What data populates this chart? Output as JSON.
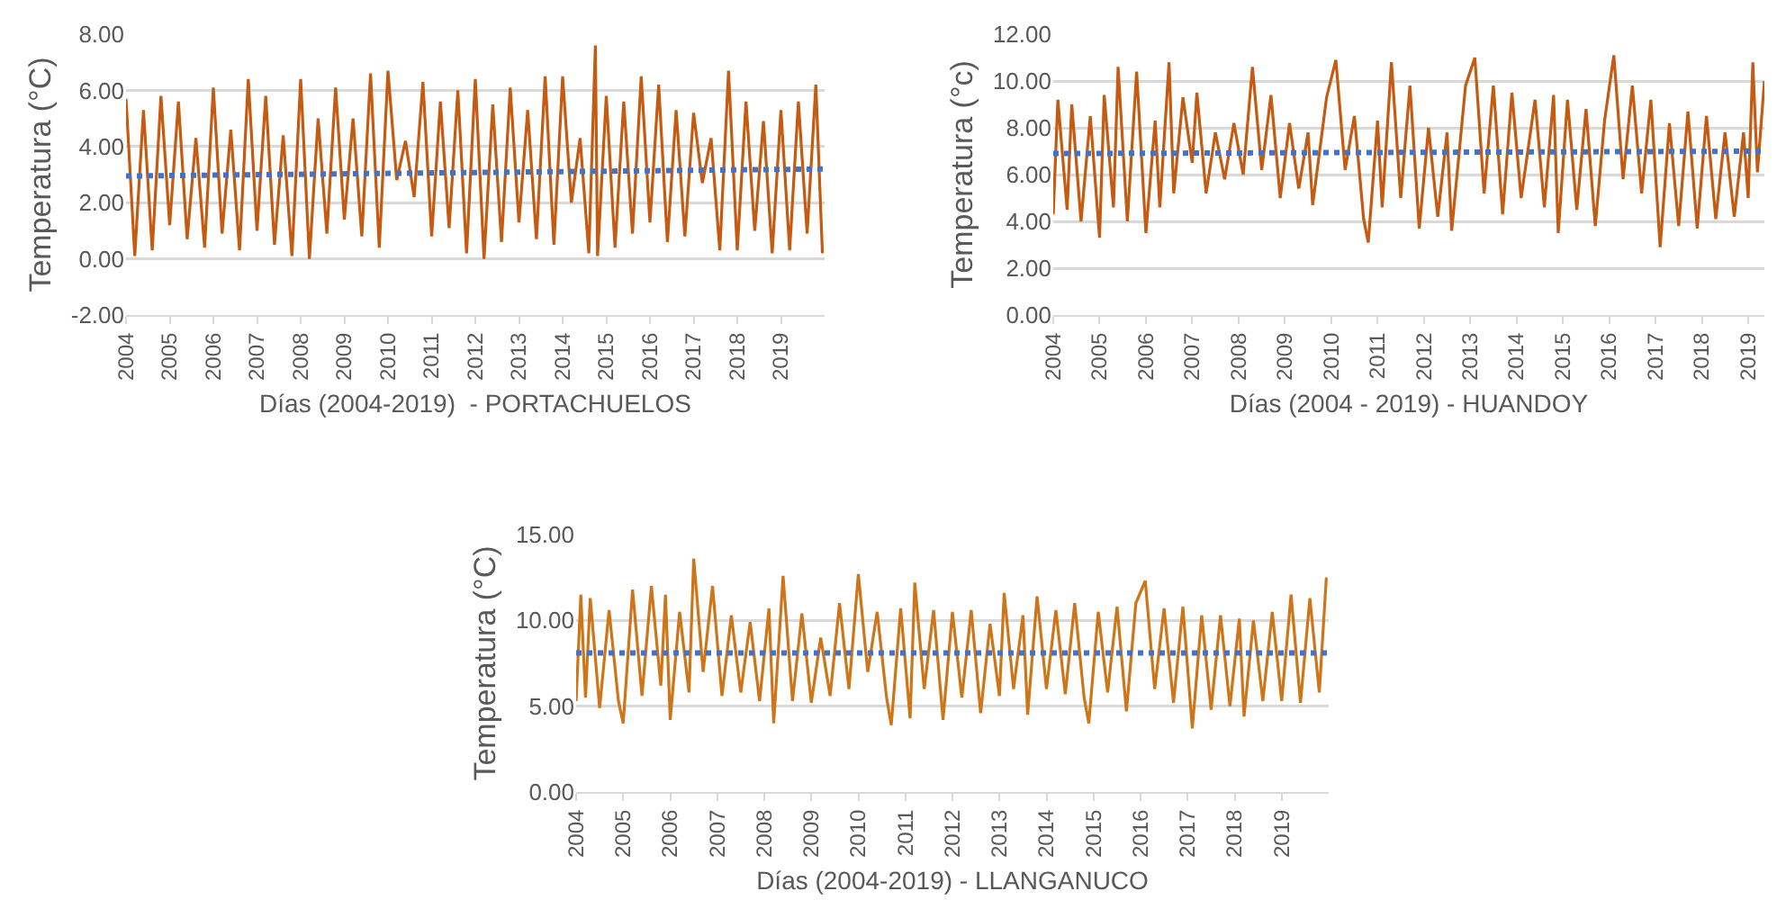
{
  "chart_data": [
    {
      "type": "line",
      "xlabel": "Días (2004-2019)  - PORTACHUELOS",
      "ylabel": "Temperatura (°C)",
      "xlim": [
        2004,
        2020
      ],
      "xticks": [
        2004,
        2005,
        2006,
        2007,
        2008,
        2009,
        2010,
        2011,
        2012,
        2013,
        2014,
        2015,
        2016,
        2017,
        2018,
        2019
      ],
      "ylim": [
        -2,
        8
      ],
      "yticks": [
        {
          "value": -2,
          "label": "-2.00"
        },
        {
          "value": 0,
          "label": "0.00"
        },
        {
          "value": 2,
          "label": "2.00"
        },
        {
          "value": 4,
          "label": "4.00"
        },
        {
          "value": 6,
          "label": "6.00"
        },
        {
          "value": 8,
          "label": "8.00"
        }
      ],
      "grid": "y",
      "marker": "none",
      "series": [
        {
          "color": "#c55a11",
          "line_style": "solid",
          "x": [
            2004.0,
            2004.2,
            2004.4,
            2004.6,
            2004.8,
            2005.0,
            2005.2,
            2005.4,
            2005.6,
            2005.8,
            2006.0,
            2006.2,
            2006.4,
            2006.6,
            2006.8,
            2007.0,
            2007.2,
            2007.4,
            2007.6,
            2007.8,
            2008.0,
            2008.2,
            2008.4,
            2008.6,
            2008.8,
            2009.0,
            2009.2,
            2009.4,
            2009.6,
            2009.8,
            2010.0,
            2010.2,
            2010.4,
            2010.6,
            2010.8,
            2011.0,
            2011.2,
            2011.4,
            2011.6,
            2011.8,
            2012.0,
            2012.2,
            2012.4,
            2012.6,
            2012.8,
            2013.0,
            2013.2,
            2013.4,
            2013.6,
            2013.8,
            2014.0,
            2014.2,
            2014.4,
            2014.6,
            2014.75,
            2014.8,
            2015.0,
            2015.2,
            2015.4,
            2015.6,
            2015.8,
            2016.0,
            2016.2,
            2016.4,
            2016.6,
            2016.8,
            2017.0,
            2017.2,
            2017.4,
            2017.6,
            2017.8,
            2018.0,
            2018.2,
            2018.4,
            2018.6,
            2018.8,
            2019.0,
            2019.2,
            2019.4,
            2019.6,
            2019.8,
            2019.95
          ],
          "values": [
            5.7,
            0.1,
            5.3,
            0.3,
            5.8,
            1.2,
            5.6,
            0.7,
            4.3,
            0.4,
            6.1,
            0.9,
            4.6,
            0.3,
            6.4,
            1.0,
            5.8,
            0.5,
            4.4,
            0.1,
            6.4,
            0.0,
            5.0,
            0.9,
            6.1,
            1.4,
            5.0,
            0.8,
            6.6,
            0.4,
            6.7,
            2.8,
            4.2,
            2.2,
            6.3,
            0.8,
            5.6,
            1.1,
            6.0,
            0.2,
            6.4,
            0.0,
            5.5,
            0.6,
            6.1,
            1.3,
            5.3,
            0.7,
            6.5,
            0.5,
            6.5,
            2.0,
            4.3,
            0.2,
            7.6,
            0.1,
            5.8,
            0.4,
            5.6,
            0.9,
            6.5,
            1.3,
            6.2,
            0.6,
            5.3,
            0.8,
            5.2,
            2.7,
            4.3,
            0.3,
            6.7,
            0.3,
            5.6,
            1.0,
            4.9,
            0.2,
            5.3,
            0.3,
            5.6,
            0.9,
            6.2,
            0.2
          ]
        },
        {
          "color": "#4472c4",
          "line_style": "dotted",
          "x": [
            2004,
            2020
          ],
          "values": [
            2.95,
            3.2
          ]
        }
      ]
    },
    {
      "type": "line",
      "xlabel": "Días (2004 - 2019) - HUANDOY",
      "ylabel": "Temperatura (°c)",
      "xlim": [
        2004,
        2019.35
      ],
      "xticks": [
        2004,
        2005,
        2006,
        2007,
        2008,
        2009,
        2010,
        2011,
        2012,
        2013,
        2014,
        2015,
        2016,
        2017,
        2018,
        2019
      ],
      "ylim": [
        0,
        12
      ],
      "yticks": [
        {
          "value": 0,
          "label": "0.00"
        },
        {
          "value": 2,
          "label": "2.00"
        },
        {
          "value": 4,
          "label": "4.00"
        },
        {
          "value": 6,
          "label": "6.00"
        },
        {
          "value": 8,
          "label": "8.00"
        },
        {
          "value": 10,
          "label": "10.00"
        },
        {
          "value": 12,
          "label": "12.00"
        }
      ],
      "grid": "y",
      "marker": "none",
      "series": [
        {
          "color": "#c55a11",
          "line_style": "solid",
          "x": [
            2004.0,
            2004.1,
            2004.3,
            2004.4,
            2004.6,
            2004.8,
            2005.0,
            2005.1,
            2005.3,
            2005.4,
            2005.6,
            2005.8,
            2006.0,
            2006.2,
            2006.3,
            2006.5,
            2006.6,
            2006.8,
            2007.0,
            2007.1,
            2007.3,
            2007.5,
            2007.7,
            2007.9,
            2008.1,
            2008.3,
            2008.5,
            2008.7,
            2008.9,
            2009.1,
            2009.3,
            2009.5,
            2009.6,
            2009.9,
            2010.1,
            2010.3,
            2010.5,
            2010.7,
            2010.8,
            2011.0,
            2011.1,
            2011.3,
            2011.5,
            2011.7,
            2011.9,
            2012.1,
            2012.3,
            2012.5,
            2012.6,
            2012.9,
            2013.1,
            2013.3,
            2013.5,
            2013.7,
            2013.9,
            2014.1,
            2014.4,
            2014.6,
            2014.8,
            2014.9,
            2015.1,
            2015.3,
            2015.5,
            2015.7,
            2015.9,
            2016.1,
            2016.3,
            2016.5,
            2016.7,
            2016.9,
            2017.1,
            2017.3,
            2017.5,
            2017.7,
            2017.9,
            2018.1,
            2018.3,
            2018.5,
            2018.7,
            2018.9,
            2019.0,
            2019.1,
            2019.2,
            2019.35
          ],
          "values": [
            4.3,
            9.2,
            4.5,
            9.0,
            4.0,
            8.5,
            3.3,
            9.4,
            4.6,
            10.6,
            4.0,
            10.4,
            3.5,
            8.3,
            4.6,
            10.8,
            5.2,
            9.3,
            6.5,
            9.5,
            5.2,
            7.8,
            5.8,
            8.2,
            6.0,
            10.6,
            6.2,
            9.4,
            5.0,
            8.2,
            5.4,
            7.8,
            4.7,
            9.3,
            10.9,
            6.2,
            8.5,
            4.1,
            3.1,
            8.3,
            4.6,
            10.8,
            5.0,
            9.8,
            3.7,
            8.0,
            4.2,
            7.8,
            3.6,
            9.8,
            11.0,
            5.2,
            9.8,
            4.3,
            9.5,
            5.0,
            9.2,
            4.6,
            9.4,
            3.5,
            9.2,
            4.5,
            8.8,
            3.8,
            8.3,
            11.1,
            5.8,
            9.8,
            5.2,
            9.2,
            2.9,
            8.2,
            3.8,
            8.7,
            3.7,
            8.5,
            4.1,
            7.8,
            4.2,
            7.8,
            5.0,
            10.8,
            6.1,
            10.0
          ]
        },
        {
          "color": "#4472c4",
          "line_style": "dotted",
          "x": [
            2004,
            2019.35
          ],
          "values": [
            6.9,
            7.0
          ]
        }
      ]
    },
    {
      "type": "line",
      "xlabel": "Días (2004-2019) - LLANGANUCO",
      "ylabel": "Temperatura (°C)",
      "xlim": [
        2004,
        2020
      ],
      "xticks": [
        2004,
        2005,
        2006,
        2007,
        2008,
        2009,
        2010,
        2011,
        2012,
        2013,
        2014,
        2015,
        2016,
        2017,
        2018,
        2019
      ],
      "ylim": [
        0,
        15
      ],
      "yticks": [
        {
          "value": 0,
          "label": "0.00"
        },
        {
          "value": 5,
          "label": "5.00"
        },
        {
          "value": 10,
          "label": "10.00"
        },
        {
          "value": 15,
          "label": "15.00"
        }
      ],
      "grid": "y",
      "marker": "none",
      "series": [
        {
          "color": "#cf7519",
          "line_style": "solid",
          "x": [
            2004.0,
            2004.1,
            2004.2,
            2004.3,
            2004.5,
            2004.7,
            2004.9,
            2005.0,
            2005.2,
            2005.4,
            2005.6,
            2005.8,
            2005.9,
            2006.0,
            2006.2,
            2006.4,
            2006.5,
            2006.7,
            2006.9,
            2007.1,
            2007.3,
            2007.5,
            2007.7,
            2007.9,
            2008.1,
            2008.2,
            2008.4,
            2008.6,
            2008.8,
            2009.0,
            2009.2,
            2009.4,
            2009.6,
            2009.8,
            2010.0,
            2010.2,
            2010.4,
            2010.6,
            2010.7,
            2010.9,
            2011.1,
            2011.2,
            2011.4,
            2011.6,
            2011.8,
            2012.0,
            2012.2,
            2012.4,
            2012.6,
            2012.8,
            2013.0,
            2013.1,
            2013.3,
            2013.5,
            2013.6,
            2013.8,
            2014.0,
            2014.2,
            2014.4,
            2014.6,
            2014.8,
            2014.9,
            2015.1,
            2015.3,
            2015.5,
            2015.7,
            2015.9,
            2016.1,
            2016.3,
            2016.5,
            2016.7,
            2016.9,
            2017.1,
            2017.3,
            2017.5,
            2017.7,
            2017.9,
            2018.1,
            2018.2,
            2018.4,
            2018.6,
            2018.8,
            2019.0,
            2019.2,
            2019.4,
            2019.6,
            2019.8,
            2019.95
          ],
          "values": [
            5.3,
            11.5,
            5.5,
            11.3,
            4.9,
            10.6,
            5.3,
            4.0,
            11.8,
            5.6,
            12.0,
            6.2,
            11.5,
            4.2,
            10.5,
            5.8,
            13.6,
            7.0,
            12.0,
            5.6,
            10.3,
            5.8,
            9.9,
            5.3,
            10.7,
            4.0,
            12.6,
            5.3,
            10.4,
            5.2,
            9.0,
            5.6,
            11.0,
            6.0,
            12.7,
            7.0,
            10.5,
            5.5,
            3.9,
            10.7,
            4.3,
            12.2,
            6.0,
            10.6,
            4.2,
            10.5,
            5.5,
            10.6,
            4.6,
            9.8,
            5.6,
            11.6,
            6.0,
            10.3,
            4.5,
            11.4,
            6.0,
            10.6,
            5.7,
            11.0,
            5.5,
            4.0,
            10.5,
            5.8,
            10.8,
            4.7,
            11.0,
            12.3,
            6.0,
            10.7,
            5.2,
            10.8,
            3.7,
            10.3,
            4.8,
            10.3,
            5.0,
            10.1,
            4.4,
            10.0,
            5.3,
            10.5,
            5.3,
            11.5,
            5.2,
            11.3,
            5.8,
            12.5
          ]
        },
        {
          "color": "#4472c4",
          "line_style": "dotted",
          "x": [
            2004,
            2020
          ],
          "values": [
            8.1,
            8.1
          ]
        }
      ]
    }
  ]
}
